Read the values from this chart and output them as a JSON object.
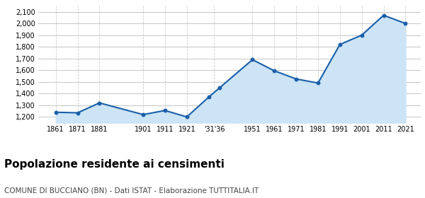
{
  "years_x": [
    1861,
    1871,
    1881,
    1901,
    1911,
    1921,
    1931,
    1936,
    1951,
    1961,
    1971,
    1981,
    1991,
    2001,
    2011,
    2021
  ],
  "population": [
    1240,
    1235,
    1320,
    1220,
    1255,
    1200,
    1370,
    1450,
    1690,
    1595,
    1525,
    1490,
    1820,
    1900,
    2070,
    2000
  ],
  "line_color": "#1a5fa8",
  "fill_color": "#cce4f5",
  "marker_color": "#1a5fa8",
  "grid_color_h": "#bbbbbb",
  "grid_color_v": "#cccccc",
  "background_color": "#ffffff",
  "ylim": [
    1150,
    2150
  ],
  "yticks": [
    1200,
    1300,
    1400,
    1500,
    1600,
    1700,
    1800,
    1900,
    2000,
    2100
  ],
  "xtick_labels": [
    "1861",
    "1871",
    "1881",
    "1901",
    "1911",
    "1921",
    "'31'36",
    "1951",
    "1961",
    "1971",
    "1981",
    "1991",
    "2001",
    "2011",
    "2021"
  ],
  "title": "Popolazione residente ai censimenti",
  "subtitle": "COMUNE DI BUCCIANO (BN) - Dati ISTAT - Elaborazione TUTTITALIA.IT",
  "title_fontsize": 11,
  "subtitle_fontsize": 7.5
}
